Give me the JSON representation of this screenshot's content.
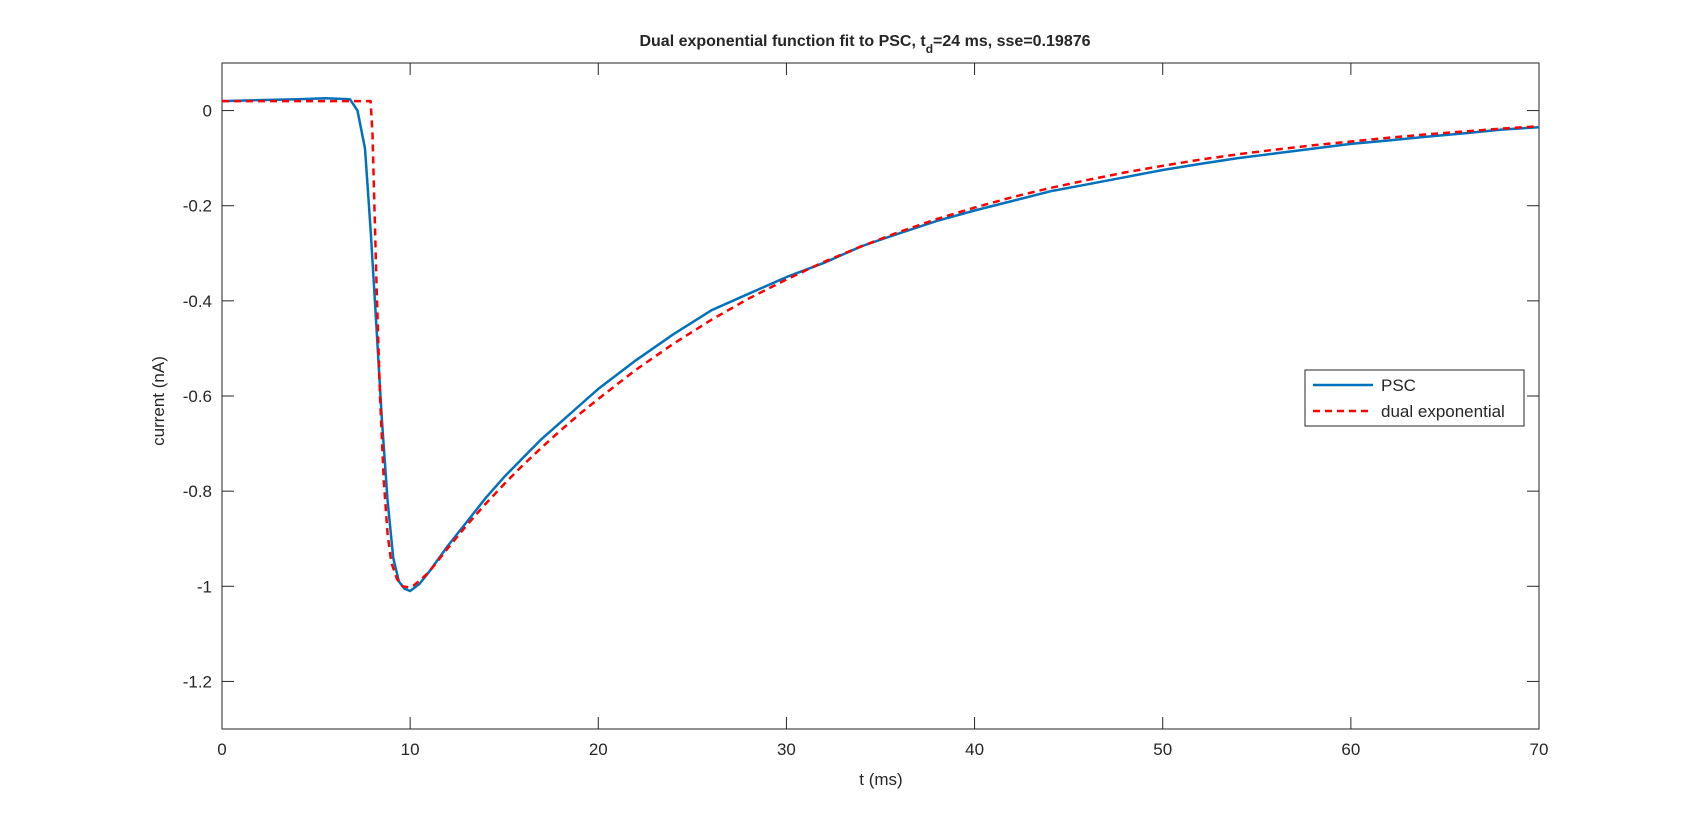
{
  "chart_data": {
    "type": "line",
    "title": {
      "prefix": "Dual exponential function fit to PSC, t",
      "subscript": "d",
      "suffix": "=24 ms, sse=0.19876"
    },
    "xlabel": "t (ms)",
    "ylabel": "current (nA)",
    "xlim": [
      0,
      70
    ],
    "ylim": [
      -1.3,
      0.1
    ],
    "xticks": [
      0,
      10,
      20,
      30,
      40,
      50,
      60,
      70
    ],
    "yticks": [
      0,
      -0.2,
      -0.4,
      -0.6,
      -0.8,
      -1,
      -1.2
    ],
    "xtick_labels": [
      "0",
      "10",
      "20",
      "30",
      "40",
      "50",
      "60",
      "70"
    ],
    "ytick_labels": [
      "0",
      "-0.2",
      "-0.4",
      "-0.6",
      "-0.8",
      "-1",
      "-1.2"
    ],
    "grid": false,
    "legend_position": "right",
    "series": [
      {
        "name": "PSC",
        "color": "#0072BD",
        "style": "solid",
        "x": [
          0,
          2,
          4,
          5.5,
          6.8,
          7.2,
          7.6,
          7.9,
          8.2,
          8.5,
          8.8,
          9.1,
          9.4,
          9.7,
          10,
          10.5,
          11,
          12,
          13,
          14,
          15,
          16,
          17,
          18,
          19,
          20,
          22,
          24,
          26,
          28,
          30,
          32,
          34,
          36,
          38,
          40,
          42,
          44,
          46,
          48,
          50,
          52,
          54,
          56,
          58,
          60,
          62,
          64,
          66,
          68,
          70
        ],
        "y": [
          0.02,
          0.022,
          0.024,
          0.026,
          0.024,
          0.0,
          -0.08,
          -0.25,
          -0.45,
          -0.65,
          -0.82,
          -0.94,
          -0.99,
          -1.005,
          -1.01,
          -0.995,
          -0.97,
          -0.915,
          -0.865,
          -0.815,
          -0.77,
          -0.73,
          -0.69,
          -0.655,
          -0.62,
          -0.585,
          -0.525,
          -0.47,
          -0.42,
          -0.385,
          -0.35,
          -0.32,
          -0.285,
          -0.258,
          -0.232,
          -0.21,
          -0.19,
          -0.17,
          -0.155,
          -0.14,
          -0.125,
          -0.112,
          -0.1,
          -0.09,
          -0.08,
          -0.07,
          -0.063,
          -0.055,
          -0.048,
          -0.04,
          -0.035
        ]
      },
      {
        "name": "dual exponential",
        "color": "#FF0000",
        "style": "dashed",
        "x": [
          0,
          2,
          4,
          6,
          7.5,
          7.9,
          8.0,
          8.2,
          8.4,
          8.6,
          8.8,
          9.0,
          9.3,
          9.6,
          9.9,
          10.2,
          10.6,
          11,
          12,
          13,
          14,
          15,
          16,
          17,
          18,
          19,
          20,
          22,
          24,
          26,
          28,
          30,
          32,
          34,
          36,
          38,
          40,
          42,
          44,
          46,
          48,
          50,
          52,
          54,
          56,
          58,
          60,
          62,
          64,
          66,
          68,
          70
        ],
        "y": [
          0.02,
          0.02,
          0.02,
          0.02,
          0.02,
          0.02,
          -0.05,
          -0.35,
          -0.6,
          -0.78,
          -0.89,
          -0.95,
          -0.985,
          -1.0,
          -1.002,
          -0.998,
          -0.985,
          -0.97,
          -0.92,
          -0.872,
          -0.827,
          -0.785,
          -0.745,
          -0.708,
          -0.672,
          -0.638,
          -0.606,
          -0.545,
          -0.49,
          -0.44,
          -0.395,
          -0.355,
          -0.318,
          -0.285,
          -0.255,
          -0.228,
          -0.204,
          -0.182,
          -0.163,
          -0.146,
          -0.13,
          -0.116,
          -0.103,
          -0.092,
          -0.082,
          -0.073,
          -0.065,
          -0.057,
          -0.05,
          -0.044,
          -0.038,
          -0.033
        ]
      }
    ]
  }
}
